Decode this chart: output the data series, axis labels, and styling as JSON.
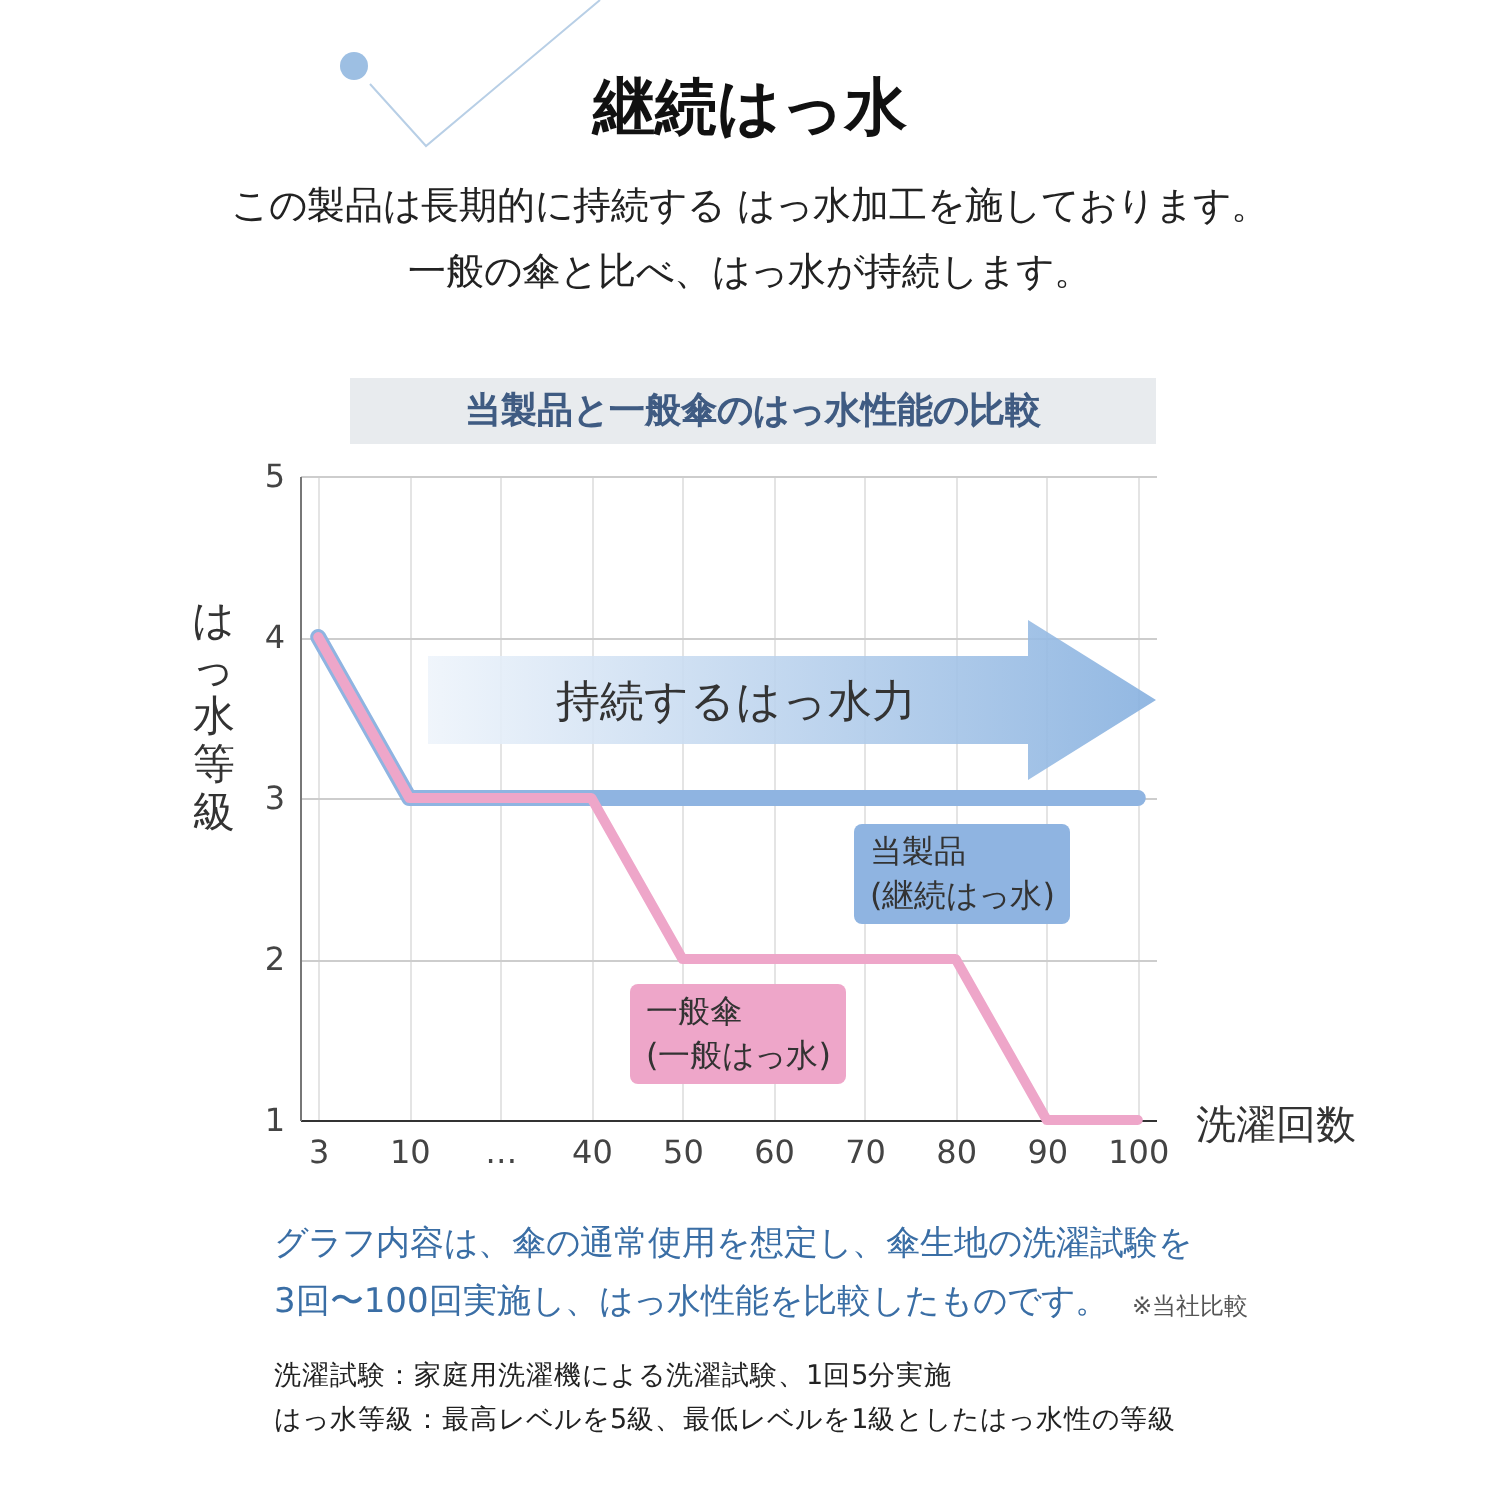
{
  "chart_data": {
    "type": "line",
    "title": "継続はっ水",
    "subtitle": "この製品は長期的に持続する はっ水加工を施しております。",
    "xlabel": "洗濯回数",
    "ylabel": "はっ水等級",
    "annotations": [
      "一般の傘と比べ、はっ水が持続します。",
      "当製品と一般傘のはっ水性能の比較",
      "持続するはっ水力",
      "グラフ内容は、傘の通常使用を想定し、傘生地の洗濯試験を",
      "3回〜100回実施し、はっ水性能を比較したものです。",
      "※当社比較",
      "洗濯試験：家庭用洗濯機による洗濯試験、1回5分実施",
      "はっ水等級：最高レベルを5級、最低レベルを1級としたはっ水性の等級"
    ],
    "categories": [
      "3",
      "10",
      "…",
      "40",
      "50",
      "60",
      "70",
      "80",
      "90",
      "100"
    ],
    "series": [
      {
        "name": "当製品\n(継続はっ水)",
        "color": "#8fb4e1",
        "values": [
          4,
          3,
          3,
          3,
          3,
          3,
          3,
          3,
          3,
          3
        ]
      },
      {
        "name": "一般傘\n(一般はっ水)",
        "color": "#eea6c9",
        "values": [
          4,
          3,
          3,
          3,
          2,
          2,
          2,
          2,
          1,
          1
        ]
      }
    ],
    "ylim": [
      1,
      5
    ],
    "yticks": [
      1,
      2,
      3,
      4,
      5
    ],
    "grid": true
  }
}
